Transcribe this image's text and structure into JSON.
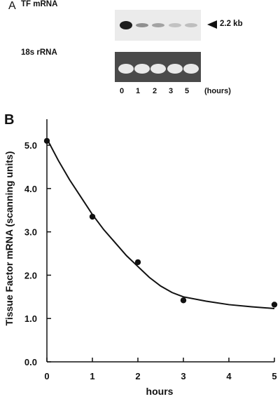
{
  "panel_a": {
    "letter": "A",
    "tf_label": "TF mRNA",
    "rrna_label": "18s rRNA",
    "size_marker": "2.2 kb",
    "lanes": [
      "0",
      "1",
      "2",
      "3",
      "5"
    ],
    "lane_unit": "(hours)",
    "tf_band_intensity": [
      1.0,
      0.45,
      0.35,
      0.2,
      0.22
    ],
    "rrna_band_intensity": [
      1.0,
      1.0,
      1.0,
      1.0,
      1.0
    ]
  },
  "panel_b": {
    "letter": "B"
  },
  "chart_data": {
    "type": "scatter",
    "title": "",
    "xlabel": "hours",
    "ylabel": "Tissue Factor mRNA (scanning units)",
    "xlim": [
      0,
      5
    ],
    "ylim": [
      0,
      5.6
    ],
    "x_ticks": [
      "0",
      "1",
      "2",
      "3",
      "4",
      "5"
    ],
    "y_ticks": [
      "0.0",
      "1.0",
      "2.0",
      "3.0",
      "4.0",
      "5.0"
    ],
    "grid": false,
    "series": [
      {
        "type": "scatter",
        "x": [
          0,
          1,
          2,
          3,
          5
        ],
        "y": [
          5.1,
          3.35,
          2.3,
          1.42,
          1.32
        ]
      },
      {
        "type": "line",
        "x": [
          0,
          0.25,
          0.5,
          0.75,
          1,
          1.25,
          1.5,
          1.75,
          2,
          2.25,
          2.5,
          2.75,
          3,
          3.5,
          4,
          4.5,
          5
        ],
        "y": [
          5.15,
          4.65,
          4.2,
          3.8,
          3.4,
          3.05,
          2.75,
          2.45,
          2.2,
          1.95,
          1.75,
          1.6,
          1.5,
          1.4,
          1.32,
          1.27,
          1.23
        ]
      }
    ]
  }
}
